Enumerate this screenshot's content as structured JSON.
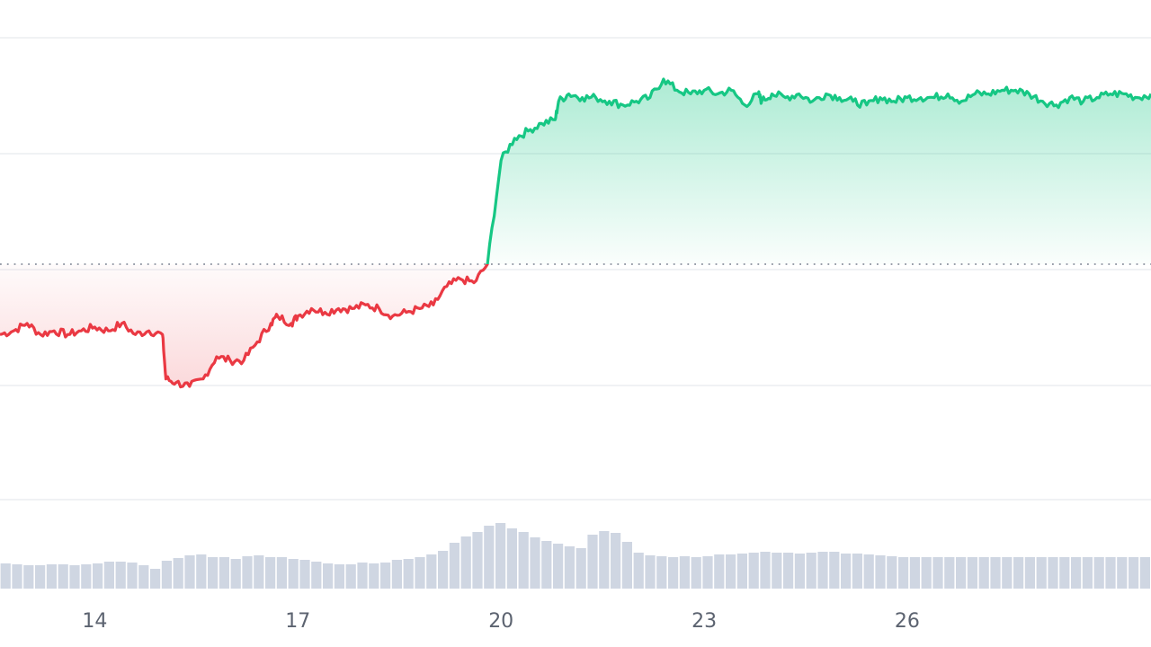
{
  "chart_data": {
    "type": "area",
    "title": "",
    "xlabel": "",
    "ylabel": "",
    "x_ticks": [
      "14",
      "17",
      "20",
      "23",
      "26"
    ],
    "x_tick_days": [
      14,
      17,
      20,
      23,
      26
    ],
    "x_range": [
      12.6,
      29.6
    ],
    "y_range": [
      0,
      100
    ],
    "baseline": 50,
    "grid": "horizontal",
    "colors": {
      "above": "#16c784",
      "below": "#ea3943",
      "volume": "#cfd6e2",
      "grid": "#eceef1",
      "baseline": "#8a919e"
    },
    "price": {
      "x": [
        12.6,
        12.8,
        13.0,
        13.2,
        13.4,
        13.6,
        13.8,
        14.0,
        14.2,
        14.4,
        14.6,
        14.8,
        15.0,
        15.05,
        15.2,
        15.4,
        15.6,
        15.8,
        16.0,
        16.2,
        16.4,
        16.6,
        16.7,
        16.9,
        17.0,
        17.2,
        17.4,
        17.6,
        17.8,
        18.0,
        18.2,
        18.4,
        18.6,
        18.8,
        19.0,
        19.2,
        19.4,
        19.6,
        19.8,
        20.0,
        20.2,
        20.4,
        20.6,
        20.8,
        20.85,
        21.0,
        21.2,
        21.4,
        21.6,
        21.8,
        22.0,
        22.2,
        22.4,
        22.6,
        22.8,
        23.0,
        23.2,
        23.4,
        23.6,
        23.8,
        23.85,
        24.0,
        24.2,
        24.4,
        24.6,
        24.8,
        25.0,
        25.2,
        25.4,
        25.6,
        25.8,
        26.0,
        26.2,
        26.4,
        26.6,
        26.8,
        27.0,
        27.2,
        27.4,
        27.6,
        27.8,
        28.0,
        28.2,
        28.4,
        28.6,
        28.8,
        29.0,
        29.2,
        29.4,
        29.6
      ],
      "y": [
        31,
        32,
        34,
        31,
        32,
        31,
        32,
        33,
        32,
        34,
        31,
        32,
        31,
        19,
        18,
        17,
        19,
        25,
        24,
        24,
        29,
        34,
        36,
        34,
        36,
        38,
        37,
        38,
        38,
        39,
        38,
        36,
        37,
        38,
        39,
        44,
        46,
        45,
        50,
        78,
        84,
        86,
        88,
        89,
        94,
        96,
        95,
        95,
        94,
        93,
        94,
        95,
        100,
        97,
        96,
        97,
        96,
        97,
        93,
        96,
        94,
        96,
        95,
        96,
        94,
        96,
        95,
        94,
        93,
        95,
        94,
        95,
        95,
        95,
        96,
        94,
        96,
        96,
        97,
        97,
        96,
        94,
        93,
        95,
        94,
        95,
        96,
        96,
        95,
        96
      ],
      "note": ""
    },
    "volume": {
      "values": [
        28,
        27,
        26,
        26,
        27,
        27,
        26,
        27,
        28,
        30,
        30,
        29,
        26,
        22,
        31,
        34,
        37,
        38,
        35,
        35,
        33,
        36,
        37,
        35,
        35,
        33,
        32,
        30,
        28,
        27,
        27,
        29,
        28,
        29,
        32,
        33,
        35,
        38,
        42,
        51,
        58,
        63,
        70,
        73,
        67,
        63,
        57,
        53,
        50,
        47,
        45,
        60,
        64,
        62,
        52,
        40,
        37,
        36,
        35,
        36,
        35,
        36,
        38,
        38,
        39,
        40,
        41,
        40,
        40,
        39,
        40,
        41,
        41,
        39,
        39,
        38,
        37,
        36,
        35,
        35,
        35,
        35,
        35,
        35,
        35,
        35,
        35,
        35,
        35,
        35,
        35,
        35,
        35,
        35,
        35,
        35,
        35,
        35,
        35,
        35
      ]
    }
  }
}
